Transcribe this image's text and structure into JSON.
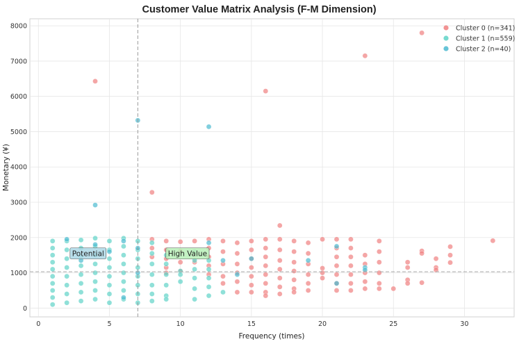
{
  "chart_data": {
    "type": "scatter",
    "title": "Customer Value Matrix Analysis (F-M Dimension)",
    "xlabel": "Frequency (times)",
    "ylabel": "Monetary (¥)",
    "xlim": [
      -0.6,
      33.5
    ],
    "ylim": [
      -250,
      8200
    ],
    "xticks": [
      0,
      5,
      10,
      15,
      20,
      25,
      30
    ],
    "yticks": [
      0,
      1000,
      2000,
      3000,
      4000,
      5000,
      6000,
      7000,
      8000
    ],
    "grid": true,
    "legend_position": "top-right",
    "reference_lines": {
      "x_value": 7,
      "y_value": 1030
    },
    "annotations": [
      {
        "text": "Potential",
        "x": 3.5,
        "y": 1550,
        "color": "#add8e6"
      },
      {
        "text": "High Value",
        "x": 10.5,
        "y": 1550,
        "color": "#b9f0b9"
      }
    ],
    "series": [
      {
        "name": "Cluster 0 (n=341)",
        "color": "#f08080",
        "points": [
          [
            4,
            6430
          ],
          [
            16,
            6150
          ],
          [
            23,
            7150
          ],
          [
            27,
            7800
          ],
          [
            8,
            3280
          ],
          [
            17,
            2340
          ],
          [
            8,
            1950
          ],
          [
            8,
            1700
          ],
          [
            8,
            1450
          ],
          [
            9,
            1900
          ],
          [
            9,
            1650
          ],
          [
            9,
            1400
          ],
          [
            9,
            1150
          ],
          [
            9,
            1000
          ],
          [
            10,
            1880
          ],
          [
            10,
            1620
          ],
          [
            10,
            1300
          ],
          [
            10,
            1050
          ],
          [
            11,
            1900
          ],
          [
            11,
            1600
          ],
          [
            11,
            1300
          ],
          [
            12,
            1950
          ],
          [
            12,
            1700
          ],
          [
            12,
            1450
          ],
          [
            12,
            1200
          ],
          [
            12,
            950
          ],
          [
            13,
            1900
          ],
          [
            13,
            1600
          ],
          [
            13,
            1250
          ],
          [
            13,
            900
          ],
          [
            13,
            700
          ],
          [
            14,
            1850
          ],
          [
            14,
            1550
          ],
          [
            14,
            1250
          ],
          [
            14,
            1000
          ],
          [
            14,
            750
          ],
          [
            14,
            450
          ],
          [
            15,
            1900
          ],
          [
            15,
            1650
          ],
          [
            15,
            1400
          ],
          [
            15,
            1150
          ],
          [
            15,
            900
          ],
          [
            15,
            650
          ],
          [
            15,
            450
          ],
          [
            16,
            1950
          ],
          [
            16,
            1700
          ],
          [
            16,
            1450
          ],
          [
            16,
            1200
          ],
          [
            16,
            950
          ],
          [
            16,
            700
          ],
          [
            16,
            450
          ],
          [
            16,
            350
          ],
          [
            17,
            1950
          ],
          [
            17,
            1650
          ],
          [
            17,
            1350
          ],
          [
            17,
            1100
          ],
          [
            17,
            850
          ],
          [
            17,
            600
          ],
          [
            17,
            400
          ],
          [
            18,
            1900
          ],
          [
            18,
            1600
          ],
          [
            18,
            1300
          ],
          [
            18,
            1050
          ],
          [
            18,
            800
          ],
          [
            18,
            550
          ],
          [
            18,
            450
          ],
          [
            19,
            1850
          ],
          [
            19,
            1550
          ],
          [
            19,
            1250
          ],
          [
            19,
            950
          ],
          [
            19,
            700
          ],
          [
            19,
            500
          ],
          [
            20,
            1950
          ],
          [
            20,
            1130
          ],
          [
            20,
            1000
          ],
          [
            20,
            850
          ],
          [
            21,
            1950
          ],
          [
            21,
            1700
          ],
          [
            21,
            1450
          ],
          [
            21,
            1200
          ],
          [
            21,
            950
          ],
          [
            21,
            700
          ],
          [
            21,
            500
          ],
          [
            22,
            1950
          ],
          [
            22,
            1700
          ],
          [
            22,
            1450
          ],
          [
            22,
            1200
          ],
          [
            22,
            950
          ],
          [
            22,
            700
          ],
          [
            22,
            500
          ],
          [
            23,
            1500
          ],
          [
            23,
            1250
          ],
          [
            23,
            1000
          ],
          [
            23,
            750
          ],
          [
            23,
            550
          ],
          [
            24,
            1900
          ],
          [
            24,
            1600
          ],
          [
            24,
            1300
          ],
          [
            24,
            1000
          ],
          [
            24,
            700
          ],
          [
            24,
            550
          ],
          [
            25,
            550
          ],
          [
            26,
            1300
          ],
          [
            26,
            1150
          ],
          [
            26,
            800
          ],
          [
            26,
            700
          ],
          [
            27,
            1620
          ],
          [
            27,
            1550
          ],
          [
            27,
            720
          ],
          [
            28,
            1400
          ],
          [
            28,
            1150
          ],
          [
            28,
            1080
          ],
          [
            29,
            1740
          ],
          [
            29,
            1500
          ],
          [
            29,
            1290
          ],
          [
            32,
            1910
          ]
        ]
      },
      {
        "name": "Cluster 1 (n=559)",
        "color": "#5fd3c7",
        "points": [
          [
            1,
            1900
          ],
          [
            1,
            1700
          ],
          [
            1,
            1500
          ],
          [
            1,
            1300
          ],
          [
            1,
            1100
          ],
          [
            1,
            900
          ],
          [
            1,
            700
          ],
          [
            1,
            500
          ],
          [
            1,
            300
          ],
          [
            1,
            100
          ],
          [
            2,
            1900
          ],
          [
            2,
            1650
          ],
          [
            2,
            1400
          ],
          [
            2,
            1150
          ],
          [
            2,
            900
          ],
          [
            2,
            650
          ],
          [
            2,
            400
          ],
          [
            2,
            150
          ],
          [
            3,
            1930
          ],
          [
            3,
            1700
          ],
          [
            3,
            1450
          ],
          [
            3,
            1200
          ],
          [
            3,
            950
          ],
          [
            3,
            700
          ],
          [
            3,
            450
          ],
          [
            3,
            200
          ],
          [
            4,
            1980
          ],
          [
            4,
            1750
          ],
          [
            4,
            1500
          ],
          [
            4,
            1250
          ],
          [
            4,
            1000
          ],
          [
            4,
            750
          ],
          [
            4,
            500
          ],
          [
            4,
            250
          ],
          [
            5,
            1900
          ],
          [
            5,
            1650
          ],
          [
            5,
            1400
          ],
          [
            5,
            1150
          ],
          [
            5,
            900
          ],
          [
            5,
            650
          ],
          [
            5,
            400
          ],
          [
            5,
            150
          ],
          [
            6,
            1980
          ],
          [
            6,
            1750
          ],
          [
            6,
            1500
          ],
          [
            6,
            1250
          ],
          [
            6,
            1000
          ],
          [
            6,
            750
          ],
          [
            6,
            500
          ],
          [
            6,
            250
          ],
          [
            7,
            1900
          ],
          [
            7,
            1650
          ],
          [
            7,
            1400
          ],
          [
            7,
            1150
          ],
          [
            7,
            900
          ],
          [
            7,
            650
          ],
          [
            7,
            400
          ],
          [
            7,
            150
          ],
          [
            8,
            1850
          ],
          [
            8,
            1550
          ],
          [
            8,
            1250
          ],
          [
            8,
            950
          ],
          [
            8,
            650
          ],
          [
            8,
            400
          ],
          [
            8,
            200
          ],
          [
            9,
            1500
          ],
          [
            9,
            1250
          ],
          [
            9,
            950
          ],
          [
            9,
            650
          ],
          [
            9,
            350
          ],
          [
            9,
            250
          ],
          [
            10,
            1050
          ],
          [
            10,
            950
          ],
          [
            10,
            750
          ],
          [
            11,
            1600
          ],
          [
            11,
            1350
          ],
          [
            11,
            1100
          ],
          [
            11,
            850
          ],
          [
            11,
            550
          ],
          [
            11,
            250
          ],
          [
            12,
            1350
          ],
          [
            12,
            1100
          ],
          [
            12,
            850
          ],
          [
            12,
            600
          ],
          [
            12,
            350
          ],
          [
            13,
            450
          ]
        ]
      },
      {
        "name": "Cluster 2 (n=40)",
        "color": "#4cbad0",
        "points": [
          [
            4,
            2920
          ],
          [
            7,
            5320
          ],
          [
            12,
            5140
          ],
          [
            2,
            1950
          ],
          [
            3,
            1350
          ],
          [
            4,
            1800
          ],
          [
            5,
            1600
          ],
          [
            6,
            1900
          ],
          [
            6,
            300
          ],
          [
            7,
            1700
          ],
          [
            7,
            1000
          ],
          [
            12,
            1850
          ],
          [
            13,
            1350
          ],
          [
            14,
            950
          ],
          [
            15,
            1400
          ],
          [
            19,
            1350
          ],
          [
            21,
            1750
          ],
          [
            21,
            700
          ],
          [
            23,
            1150
          ],
          [
            23,
            1080
          ]
        ]
      }
    ]
  }
}
